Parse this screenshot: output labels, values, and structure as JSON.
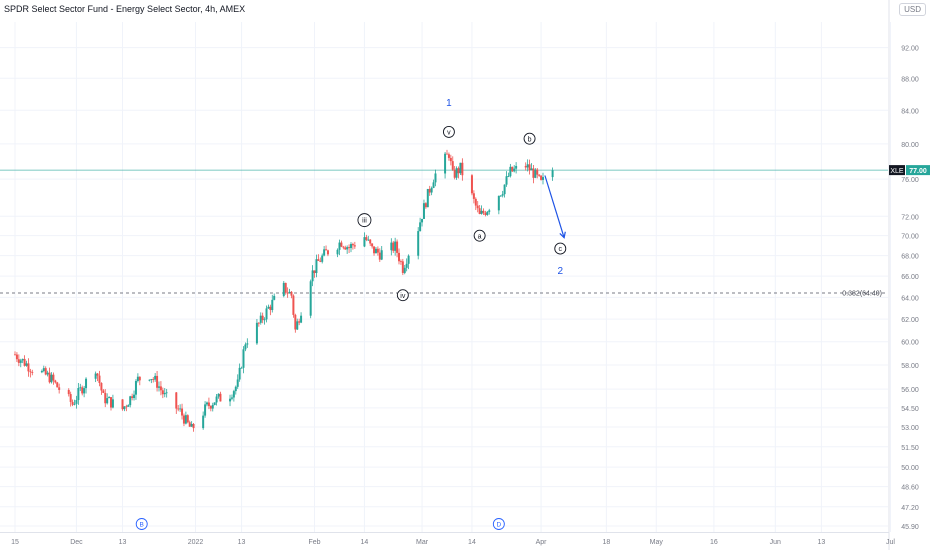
{
  "header": {
    "title": "SPDR Select Sector Fund - Energy Select Sector, 4h, AMEX",
    "currency": "USD"
  },
  "price_tag": {
    "symbol": "XLE",
    "value": "77.00"
  },
  "fib_label": "0.382(64.40)",
  "colors": {
    "up": "#26a69a",
    "down": "#ef5350",
    "wave": "#2962ff",
    "grid": "#f0f3fa",
    "text": "#787b86"
  },
  "chart_data": {
    "type": "candlestick",
    "y_scale": "log",
    "ylim": [
      45.5,
      95.5
    ],
    "y_ticks": [
      "92.00",
      "88.00",
      "84.00",
      "80.00",
      "76.00",
      "72.00",
      "70.00",
      "68.00",
      "66.00",
      "64.00",
      "62.00",
      "60.00",
      "58.00",
      "56.00",
      "54.50",
      "53.00",
      "51.50",
      "50.00",
      "48.60",
      "47.20",
      "45.90"
    ],
    "x_ticks": [
      "15",
      "Dec",
      "13",
      "2022",
      "13",
      "Feb",
      "14",
      "Mar",
      "14",
      "18",
      "Apr",
      "May",
      "16",
      "Jun",
      "13",
      "Jul"
    ],
    "current_price": 77.0,
    "fib_level": 64.4,
    "price_path": [
      {
        "date": "2021-11-15",
        "close": 58.9
      },
      {
        "date": "2021-11-19",
        "close": 57.8
      },
      {
        "date": "2021-11-24",
        "close": 57.0
      },
      {
        "date": "2021-11-26",
        "close": 56.2
      },
      {
        "date": "2021-11-30",
        "close": 54.8
      },
      {
        "date": "2021-12-02",
        "close": 55.9
      },
      {
        "date": "2021-12-06",
        "close": 57.8
      },
      {
        "date": "2021-12-08",
        "close": 55.3
      },
      {
        "date": "2021-12-13",
        "close": 54.4
      },
      {
        "date": "2021-12-15",
        "close": 55.3
      },
      {
        "date": "2021-12-17",
        "close": 56.8
      },
      {
        "date": "2021-12-20",
        "close": 57.2
      },
      {
        "date": "2021-12-22",
        "close": 56.5
      },
      {
        "date": "2021-12-24",
        "close": 55.4
      },
      {
        "date": "2021-12-28",
        "close": 54.2
      },
      {
        "date": "2021-12-30",
        "close": 53.2
      },
      {
        "date": "2021-12-31",
        "close": 52.8
      },
      {
        "date": "2022-01-04",
        "close": 54.6
      },
      {
        "date": "2022-01-06",
        "close": 55.1
      },
      {
        "date": "2022-01-10",
        "close": 55.6
      },
      {
        "date": "2022-01-12",
        "close": 56.4
      },
      {
        "date": "2022-01-14",
        "close": 60.0
      },
      {
        "date": "2022-01-18",
        "close": 61.8
      },
      {
        "date": "2022-01-20",
        "close": 63.0
      },
      {
        "date": "2022-01-24",
        "close": 64.9
      },
      {
        "date": "2022-01-26",
        "close": 64.2
      },
      {
        "date": "2022-01-27",
        "close": 61.0
      },
      {
        "date": "2022-01-31",
        "close": 66.0
      },
      {
        "date": "2022-02-02",
        "close": 67.4
      },
      {
        "date": "2022-02-04",
        "close": 68.3
      },
      {
        "date": "2022-02-08",
        "close": 69.4
      },
      {
        "date": "2022-02-10",
        "close": 68.8
      },
      {
        "date": "2022-02-14",
        "close": 69.9
      },
      {
        "date": "2022-02-16",
        "close": 68.6
      },
      {
        "date": "2022-02-18",
        "close": 68.2
      },
      {
        "date": "2022-02-22",
        "close": 68.9
      },
      {
        "date": "2022-02-24",
        "close": 66.8
      },
      {
        "date": "2022-02-28",
        "close": 70.8
      },
      {
        "date": "2022-03-02",
        "close": 73.6
      },
      {
        "date": "2022-03-04",
        "close": 76.2
      },
      {
        "date": "2022-03-08",
        "close": 78.9
      },
      {
        "date": "2022-03-09",
        "close": 76.4
      },
      {
        "date": "2022-03-11",
        "close": 77.2
      },
      {
        "date": "2022-03-14",
        "close": 74.1
      },
      {
        "date": "2022-03-16",
        "close": 72.0
      },
      {
        "date": "2022-03-18",
        "close": 72.8
      },
      {
        "date": "2022-03-22",
        "close": 74.9
      },
      {
        "date": "2022-03-24",
        "close": 76.8
      },
      {
        "date": "2022-03-28",
        "close": 77.5
      },
      {
        "date": "2022-03-30",
        "close": 76.7
      },
      {
        "date": "2022-04-01",
        "close": 75.5
      },
      {
        "date": "2022-04-04",
        "close": 77.0
      }
    ],
    "annotations": [
      {
        "label": "1",
        "type": "plain",
        "date": "2022-03-08",
        "price": 85.0
      },
      {
        "label": "v",
        "type": "circle",
        "date": "2022-03-08",
        "price": 81.4
      },
      {
        "label": "b",
        "type": "circle",
        "date": "2022-03-29",
        "price": 80.6
      },
      {
        "label": "iii",
        "type": "circle",
        "date": "2022-02-14",
        "price": 71.6
      },
      {
        "label": "a",
        "type": "circle",
        "date": "2022-03-16",
        "price": 70.0
      },
      {
        "label": "c",
        "type": "circle",
        "date": "2022-04-06",
        "price": 68.7
      },
      {
        "label": "2",
        "type": "plain",
        "date": "2022-04-06",
        "price": 66.6
      },
      {
        "label": "iv",
        "type": "circle",
        "date": "2022-02-24",
        "price": 64.2
      },
      {
        "label": "B",
        "type": "axis-circle",
        "date": "2021-12-18"
      },
      {
        "label": "D",
        "type": "axis-circle",
        "date": "2022-03-21"
      }
    ],
    "forecast_arrow": {
      "from": {
        "date": "2022-04-02",
        "price": 76.4
      },
      "to": {
        "date": "2022-04-07",
        "price": 69.8
      }
    }
  }
}
